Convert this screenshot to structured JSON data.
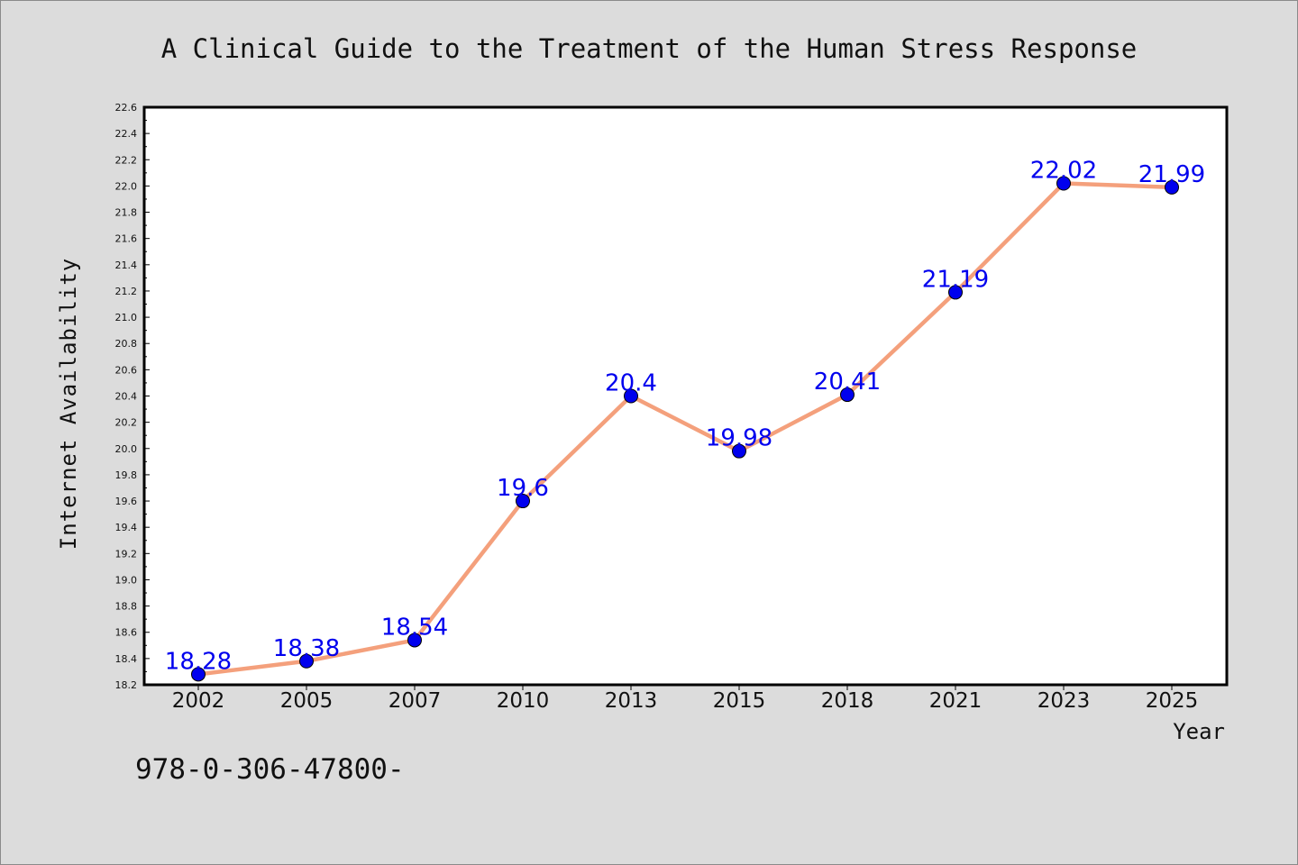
{
  "chart_data": {
    "type": "line",
    "title": "A Clinical Guide to the Treatment of the Human Stress Response",
    "xlabel": "Year",
    "ylabel": "Internet Availability",
    "categories": [
      "2002",
      "2005",
      "2007",
      "2010",
      "2013",
      "2015",
      "2018",
      "2021",
      "2023",
      "2025"
    ],
    "series": [
      {
        "values": [
          18.28,
          18.38,
          18.54,
          19.6,
          20.4,
          19.98,
          20.41,
          21.19,
          22.02,
          21.99
        ],
        "labels": [
          "18.28",
          "18.38",
          "18.54",
          "19.6",
          "20.4",
          "19.98",
          "20.41",
          "21.19",
          "22.02",
          "21.99"
        ],
        "line_color": "#f4a07c",
        "marker_color": "#0000ee"
      }
    ],
    "ylim": [
      18.2,
      22.6
    ],
    "yticks": [
      "18.2",
      "18.4",
      "18.6",
      "18.8",
      "19.0",
      "19.2",
      "19.4",
      "19.6",
      "19.8",
      "20.0",
      "20.2",
      "20.4",
      "20.6",
      "20.8",
      "21.0",
      "21.2",
      "21.4",
      "21.6",
      "21.8",
      "22.0",
      "22.2",
      "22.4",
      "22.6"
    ],
    "grid": false,
    "legend": "none"
  },
  "footer": {
    "text": "978-0-306-47800-"
  }
}
